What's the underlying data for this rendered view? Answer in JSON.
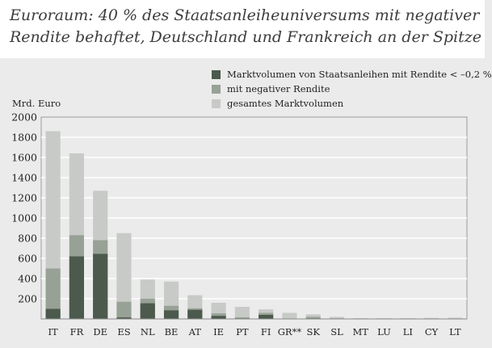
{
  "title": {
    "line1": "Euroraum: 40 % des Staatsanleiheuniversums mit negativer",
    "line2": "Rendite behaftet, Deutschland und Frankreich an der Spitze"
  },
  "colors": {
    "background": "#ebebeb",
    "title_band": "#ffffff",
    "total": "#c7cac6",
    "negative": "#98a195",
    "below": "#4b5a4c",
    "grid": "#ffffff",
    "axis": "#888888"
  },
  "chart_data": {
    "type": "bar",
    "title": "Euroraum: 40 % des Staatsanleiheuniversums mit negativer Rendite behaftet, Deutschland und Frankreich an der Spitze",
    "xlabel": "",
    "ylabel": "Mrd. Euro",
    "ylim": [
      0,
      2000
    ],
    "yticks": [
      200,
      400,
      600,
      800,
      1000,
      1200,
      1400,
      1600,
      1800,
      2000
    ],
    "grid": true,
    "legend_position": "top-right",
    "layering": "overlapping",
    "categories": [
      "IT",
      "FR",
      "DE",
      "ES",
      "NL",
      "BE",
      "AT",
      "IE",
      "PT",
      "FI",
      "GR**",
      "SK",
      "SL",
      "MT",
      "LU",
      "LI",
      "CY",
      "LT"
    ],
    "series": [
      {
        "name": "gesamtes Marktvolumen",
        "color_key": "total",
        "values": [
          1860,
          1640,
          1270,
          850,
          390,
          370,
          235,
          160,
          120,
          95,
          60,
          45,
          20,
          8,
          8,
          8,
          10,
          12
        ]
      },
      {
        "name": "mit negativer Rendite",
        "color_key": "negative",
        "values": [
          500,
          830,
          780,
          170,
          200,
          130,
          105,
          55,
          15,
          60,
          0,
          20,
          5,
          0,
          0,
          0,
          0,
          0
        ]
      },
      {
        "name": "Marktvolumen von Staatsanleihen mit Rendite < –0,2 %",
        "color_key": "below",
        "values": [
          100,
          620,
          645,
          15,
          155,
          85,
          90,
          30,
          5,
          40,
          0,
          5,
          0,
          0,
          0,
          0,
          0,
          0
        ]
      }
    ],
    "legend": [
      {
        "label": "Marktvolumen von Staatsanleihen mit Rendite < –0,2 %",
        "color_key": "below"
      },
      {
        "label": "mit negativer Rendite",
        "color_key": "negative"
      },
      {
        "label": "gesamtes Marktvolumen",
        "color_key": "total"
      }
    ]
  }
}
